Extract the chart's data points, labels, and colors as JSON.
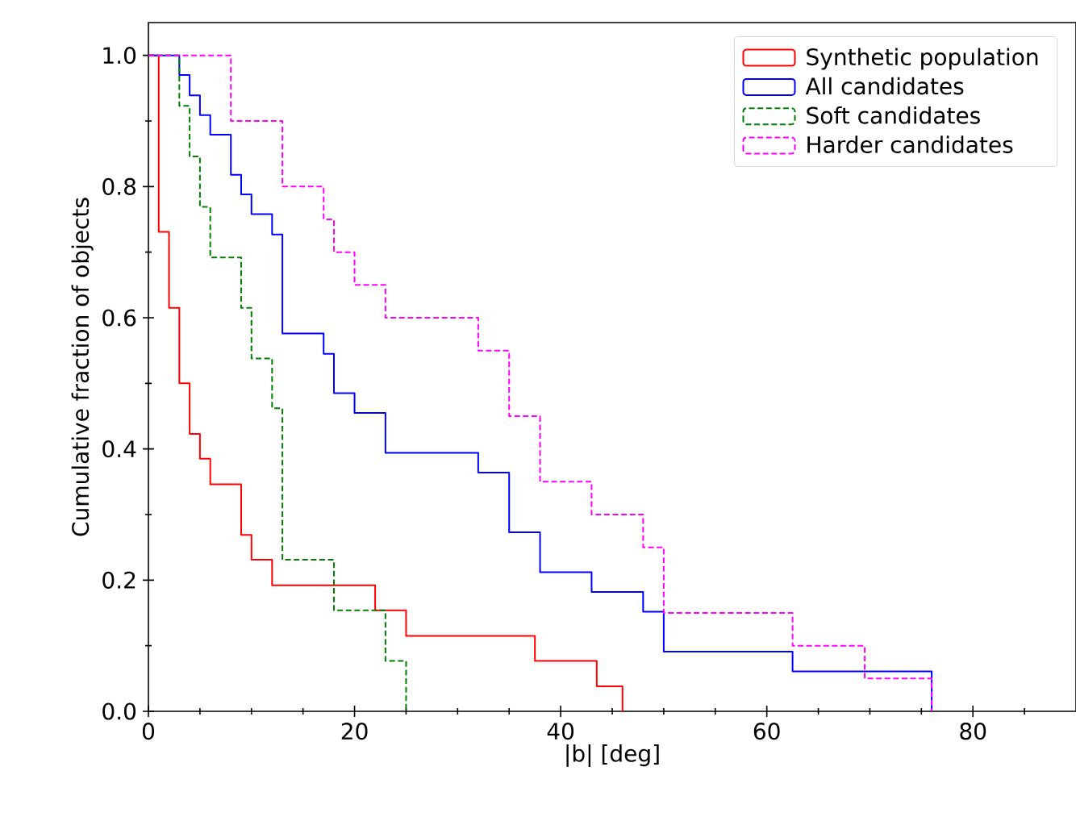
{
  "chart_data": {
    "type": "step",
    "xlabel": "|b| [deg]",
    "ylabel": "Cumulative fraction of objects",
    "xlim": [
      0,
      90
    ],
    "ylim": [
      0,
      1.05
    ],
    "xticks": [
      0,
      {
        "value": 5,
        "label": null
      },
      {
        "value": 10,
        "label": null
      },
      {
        "value": 15,
        "label": null
      },
      20,
      {
        "value": 25,
        "label": null
      },
      {
        "value": 30,
        "label": null
      },
      {
        "value": 35,
        "label": null
      },
      40,
      {
        "value": 45,
        "label": null
      },
      {
        "value": 50,
        "label": null
      },
      {
        "value": 55,
        "label": null
      },
      60,
      {
        "value": 65,
        "label": null
      },
      {
        "value": 70,
        "label": null
      },
      {
        "value": 75,
        "label": null
      },
      80,
      {
        "value": 85,
        "label": null
      }
    ],
    "yticks": [
      {
        "value": 0,
        "label": "0.0"
      },
      {
        "value": 0.1,
        "label": null
      },
      {
        "value": 0.2,
        "label": "0.2"
      },
      {
        "value": 0.3,
        "label": null
      },
      {
        "value": 0.4,
        "label": "0.4"
      },
      {
        "value": 0.5,
        "label": null
      },
      {
        "value": 0.6,
        "label": "0.6"
      },
      {
        "value": 0.7,
        "label": null
      },
      {
        "value": 0.8,
        "label": "0.8"
      },
      {
        "value": 0.9,
        "label": null
      },
      {
        "value": 1.0,
        "label": "1.0"
      }
    ],
    "legend": "top right",
    "grid": false,
    "marker": "none",
    "series": [
      {
        "name": "Synthetic population",
        "color": "#ff0000",
        "line_style": "solid",
        "x": [
          0,
          1,
          2,
          3,
          4,
          5,
          6,
          9,
          10,
          12,
          22,
          25,
          37.5,
          43.5,
          46
        ],
        "values": [
          1.0,
          0.731,
          0.615,
          0.5,
          0.423,
          0.385,
          0.346,
          0.269,
          0.231,
          0.192,
          0.154,
          0.115,
          0.077,
          0.038,
          0
        ]
      },
      {
        "name": "All candidates",
        "color": "#0000ff",
        "line_style": "solid",
        "x": [
          0,
          3,
          4,
          5,
          6,
          8,
          9,
          10,
          12,
          13,
          17,
          18,
          20,
          23,
          32,
          35,
          38,
          43,
          48,
          50,
          62.5,
          76
        ],
        "values": [
          1.0,
          0.97,
          0.939,
          0.909,
          0.879,
          0.818,
          0.788,
          0.758,
          0.727,
          0.576,
          0.545,
          0.485,
          0.455,
          0.394,
          0.364,
          0.273,
          0.212,
          0.182,
          0.152,
          0.091,
          0.061,
          0
        ]
      },
      {
        "name": "Soft candidates",
        "color": "#008000",
        "line_style": "dashed",
        "x": [
          0,
          3,
          4,
          5,
          6,
          9,
          10,
          12,
          13,
          18,
          23,
          25
        ],
        "values": [
          1.0,
          0.923,
          0.846,
          0.769,
          0.692,
          0.615,
          0.538,
          0.462,
          0.231,
          0.154,
          0.077,
          0
        ]
      },
      {
        "name": "Harder candidates",
        "color": "#ff00ff",
        "line_style": "dashed",
        "x": [
          0,
          8,
          13,
          17,
          18,
          20,
          23,
          32,
          35,
          38,
          43,
          48,
          50,
          62.5,
          69.5,
          76
        ],
        "values": [
          1.0,
          0.9,
          0.8,
          0.75,
          0.7,
          0.65,
          0.6,
          0.55,
          0.45,
          0.35,
          0.3,
          0.25,
          0.15,
          0.1,
          0.05,
          0
        ]
      }
    ]
  }
}
